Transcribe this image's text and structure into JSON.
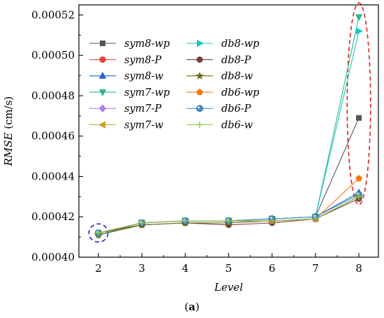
{
  "chart_data": {
    "type": "line",
    "xlabel": "Level",
    "ylabel_parts": {
      "italic": "RMSE",
      "unit": " (cm/s)"
    },
    "caption_parts": {
      "open": "(",
      "bold": "a",
      "close": ")"
    },
    "x": [
      2,
      3,
      4,
      5,
      6,
      7,
      8
    ],
    "xlim": [
      1.55,
      8.45
    ],
    "ylim": [
      0.0004,
      0.000525
    ],
    "xticks": [
      {
        "v": 2,
        "label": "2"
      },
      {
        "v": 3,
        "label": "3"
      },
      {
        "v": 4,
        "label": "4"
      },
      {
        "v": 5,
        "label": "5"
      },
      {
        "v": 6,
        "label": "6"
      },
      {
        "v": 7,
        "label": "7"
      },
      {
        "v": 8,
        "label": "8"
      }
    ],
    "yticks": [
      {
        "v": 0.0004,
        "label": "0.00040"
      },
      {
        "v": 0.00042,
        "label": "0.00042"
      },
      {
        "v": 0.00044,
        "label": "0.00044"
      },
      {
        "v": 0.00046,
        "label": "0.00046"
      },
      {
        "v": 0.00048,
        "label": "0.00048"
      },
      {
        "v": 0.0005,
        "label": "0.00050"
      },
      {
        "v": 0.00052,
        "label": "0.00052"
      }
    ],
    "grid": false,
    "legend_position": "top-left",
    "legend_columns": 2,
    "series": [
      {
        "name": "sym8-wp",
        "color": "#555555",
        "marker": "square",
        "values": [
          0.000412,
          0.000417,
          0.000418,
          0.000418,
          0.000419,
          0.00042,
          0.000469
        ]
      },
      {
        "name": "sym8-P",
        "color": "#e8413c",
        "marker": "circle",
        "values": [
          0.000412,
          0.000417,
          0.000418,
          0.000418,
          0.000418,
          0.000419,
          0.00043
        ]
      },
      {
        "name": "sym8-w",
        "color": "#2463d6",
        "marker": "triangle-up",
        "values": [
          0.000412,
          0.000417,
          0.000418,
          0.000418,
          0.000419,
          0.00042,
          0.000432
        ]
      },
      {
        "name": "sym7-wp",
        "color": "#2eb887",
        "marker": "triangle-down",
        "values": [
          0.000411,
          0.000417,
          0.000418,
          0.000418,
          0.000419,
          0.00042,
          0.000519
        ]
      },
      {
        "name": "sym7-P",
        "color": "#b27be6",
        "marker": "diamond",
        "values": [
          0.000412,
          0.000417,
          0.000418,
          0.000418,
          0.000418,
          0.000419,
          0.00043
        ]
      },
      {
        "name": "sym7-w",
        "color": "#c9a21c",
        "marker": "triangle-left",
        "values": [
          0.000412,
          0.000417,
          0.000418,
          0.000418,
          0.000418,
          0.000419,
          0.00043
        ]
      },
      {
        "name": "db8-wp",
        "color": "#1dc6c9",
        "marker": "triangle-right",
        "values": [
          0.000412,
          0.000417,
          0.000418,
          0.000418,
          0.000419,
          0.00042,
          0.000512
        ]
      },
      {
        "name": "db8-P",
        "color": "#7a3d38",
        "marker": "hexagon",
        "values": [
          0.000412,
          0.000416,
          0.000417,
          0.000416,
          0.000417,
          0.000419,
          0.000429
        ]
      },
      {
        "name": "db8-w",
        "color": "#6d6d1c",
        "marker": "star",
        "values": [
          0.000411,
          0.000416,
          0.000417,
          0.000417,
          0.000418,
          0.000419,
          0.00043
        ]
      },
      {
        "name": "db6-wp",
        "color": "#f47a10",
        "marker": "pentagon",
        "values": [
          0.000412,
          0.000417,
          0.000418,
          0.000418,
          0.000418,
          0.000419,
          0.000439
        ]
      },
      {
        "name": "db6-P",
        "color": "#4a8ec4",
        "marker": "sphere",
        "values": [
          0.000412,
          0.000417,
          0.000418,
          0.000418,
          0.000419,
          0.00042,
          0.000431
        ]
      },
      {
        "name": "db6-w",
        "color": "#8fc24a",
        "marker": "plus",
        "values": [
          0.000412,
          0.000417,
          0.000418,
          0.000418,
          0.000418,
          0.000419,
          0.00043
        ]
      }
    ],
    "annotations": [
      {
        "shape": "ellipse",
        "style": "dashed",
        "color": "#2222cc",
        "center": {
          "x": 2,
          "y": 0.000412
        },
        "rx": 0.22,
        "ry": 4.5e-06
      },
      {
        "shape": "ellipse",
        "style": "dashed",
        "color": "#e02020",
        "center": {
          "x": 8,
          "y": 0.000476
        },
        "rx": 0.27,
        "ry": 5e-05
      }
    ]
  }
}
